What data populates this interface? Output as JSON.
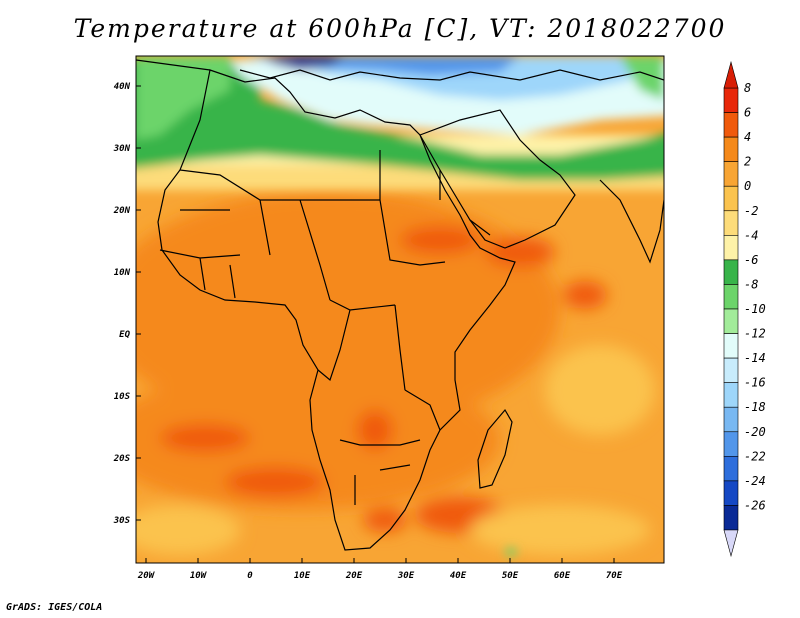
{
  "title": "Temperature at 600hPa [C], VT: 2018022700",
  "footer": "GrADS: IGES/COLA",
  "lat_labels": [
    "40N",
    "30N",
    "20N",
    "10N",
    "EQ",
    "10S",
    "20S",
    "30S"
  ],
  "lon_labels": [
    "20W",
    "10W",
    "0",
    "10E",
    "20E",
    "30E",
    "40E",
    "50E",
    "60E",
    "70E"
  ],
  "colorbar": {
    "labels": [
      "8",
      "6",
      "4",
      "2",
      "0",
      "-2",
      "-4",
      "-6",
      "-8",
      "-10",
      "-12",
      "-14",
      "-16",
      "-18",
      "-20",
      "-22",
      "-24",
      "-26"
    ],
    "colors": [
      "#e8270a",
      "#f05a0c",
      "#f5891a",
      "#f8a534",
      "#fbc34e",
      "#fddc7a",
      "#fef2a8",
      "#38b44a",
      "#6cd46a",
      "#a2ec9a",
      "#e2fcfa",
      "#c8ecfc",
      "#9ed6fa",
      "#78b8f2",
      "#5296ea",
      "#2e6edc",
      "#1548c4",
      "#0a2a96"
    ],
    "top_arrow_color": "#d81e06",
    "bottom_arrow_color": "#d8d8f8"
  },
  "fields": {
    "background": "#f8a534",
    "warm_core": "#f5891a",
    "hot": "#f05a0c",
    "cool_band": "#fbc34e",
    "pale": "#fddc7a",
    "paler": "#fef2a8",
    "green": "#38b44a",
    "lightgreen": "#6cd46a",
    "cyan": "#e2fcfa",
    "lightblue": "#9ed6fa",
    "blue": "#5296ea",
    "darkblue": "#0a2a96"
  }
}
